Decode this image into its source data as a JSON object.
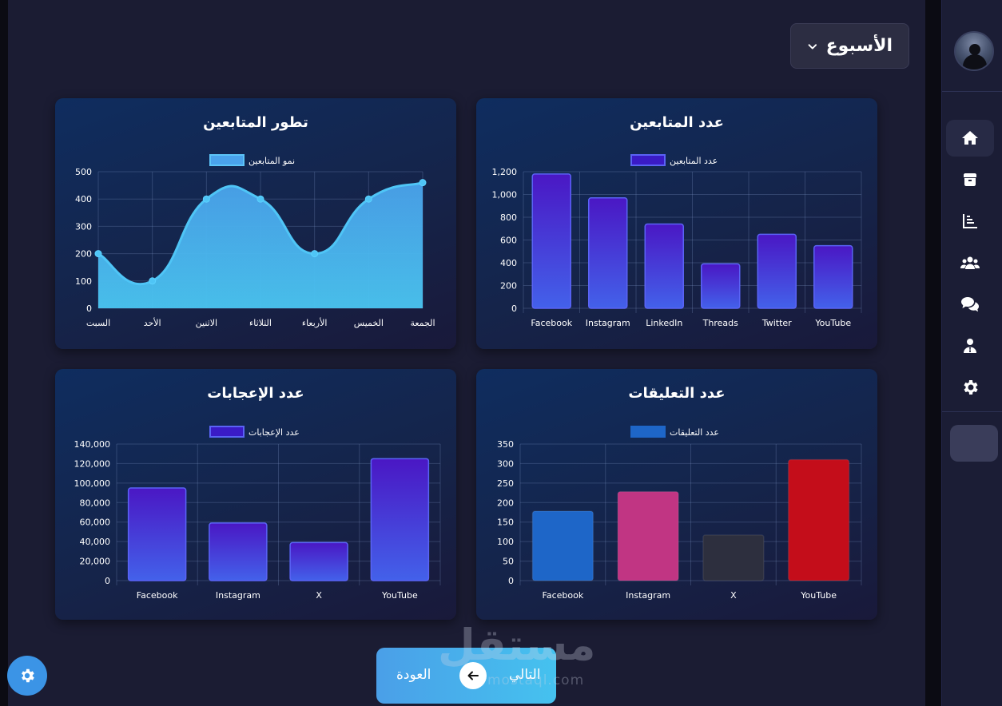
{
  "period_select": {
    "value": "الأسبوع"
  },
  "nav": {
    "back_label": "العودة",
    "next_label": "التالي"
  },
  "watermark": {
    "text_ar": "مستقل",
    "text_en": "mostaql.com"
  },
  "sidebar": {
    "items": [
      {
        "icon": "home-icon",
        "active": true
      },
      {
        "icon": "box-icon",
        "active": false
      },
      {
        "icon": "bar-chart-icon",
        "active": false
      },
      {
        "icon": "users-icon",
        "active": false
      },
      {
        "icon": "chat-icon",
        "active": false
      },
      {
        "icon": "user-icon",
        "active": false
      },
      {
        "icon": "gear-icon",
        "active": false
      }
    ]
  },
  "colors": {
    "accent": "#3b94e6",
    "bar_gradient_top": "#4a17c4",
    "bar_gradient_bottom": "#4361ea",
    "area_fill": "#4ab3ee",
    "area_line": "#4fc5f6",
    "facebook": "#1e66c8",
    "instagram": "#c13583",
    "x": "#2d2f3e",
    "youtube": "#c40d1a"
  },
  "chart_data": [
    {
      "id": "followers",
      "type": "bar",
      "title": "عدد المتابعين",
      "legend": "عدد المتابعين",
      "categories": [
        "Facebook",
        "Instagram",
        "LinkedIn",
        "Threads",
        "Twitter",
        "YouTube"
      ],
      "values": [
        1180,
        970,
        740,
        390,
        650,
        550
      ],
      "ylim": [
        0,
        1200
      ],
      "yticks": [
        "0",
        "200",
        "400",
        "600",
        "800",
        "1,000",
        "1,200"
      ],
      "legend_placement": "top-center",
      "grid": true
    },
    {
      "id": "growth",
      "type": "area",
      "title": "تطور المتابعين",
      "legend": "نمو المتابعين",
      "categories": [
        "السبت",
        "الأحد",
        "الاثنين",
        "الثلاثاء",
        "الأربعاء",
        "الخميس",
        "الجمعة"
      ],
      "values": [
        200,
        100,
        400,
        400,
        200,
        400,
        460
      ],
      "ylim": [
        0,
        500
      ],
      "yticks": [
        "0",
        "100",
        "200",
        "300",
        "400",
        "500"
      ],
      "legend_placement": "top-center",
      "grid": true
    },
    {
      "id": "comments",
      "type": "bar",
      "title": "عدد التعليقات",
      "legend": "عدد التعليقات",
      "categories": [
        "Facebook",
        "Instagram",
        "X",
        "YouTube"
      ],
      "values": [
        178,
        228,
        117,
        310
      ],
      "bar_colors": [
        "#1e66c8",
        "#c13583",
        "#2d2f3e",
        "#c40d1a"
      ],
      "ylim": [
        0,
        350
      ],
      "yticks": [
        "0",
        "50",
        "100",
        "150",
        "200",
        "250",
        "300",
        "350"
      ],
      "legend_placement": "top-center",
      "grid": true
    },
    {
      "id": "likes",
      "type": "bar",
      "title": "عدد الإعجابات",
      "legend": "عدد الإعجابات",
      "categories": [
        "Facebook",
        "Instagram",
        "X",
        "YouTube"
      ],
      "values": [
        95000,
        59000,
        39000,
        125000
      ],
      "ylim": [
        0,
        140000
      ],
      "yticks": [
        "0",
        "20,000",
        "40,000",
        "60,000",
        "80,000",
        "100,000",
        "120,000",
        "140,000"
      ],
      "legend_placement": "top-center",
      "grid": true
    }
  ]
}
